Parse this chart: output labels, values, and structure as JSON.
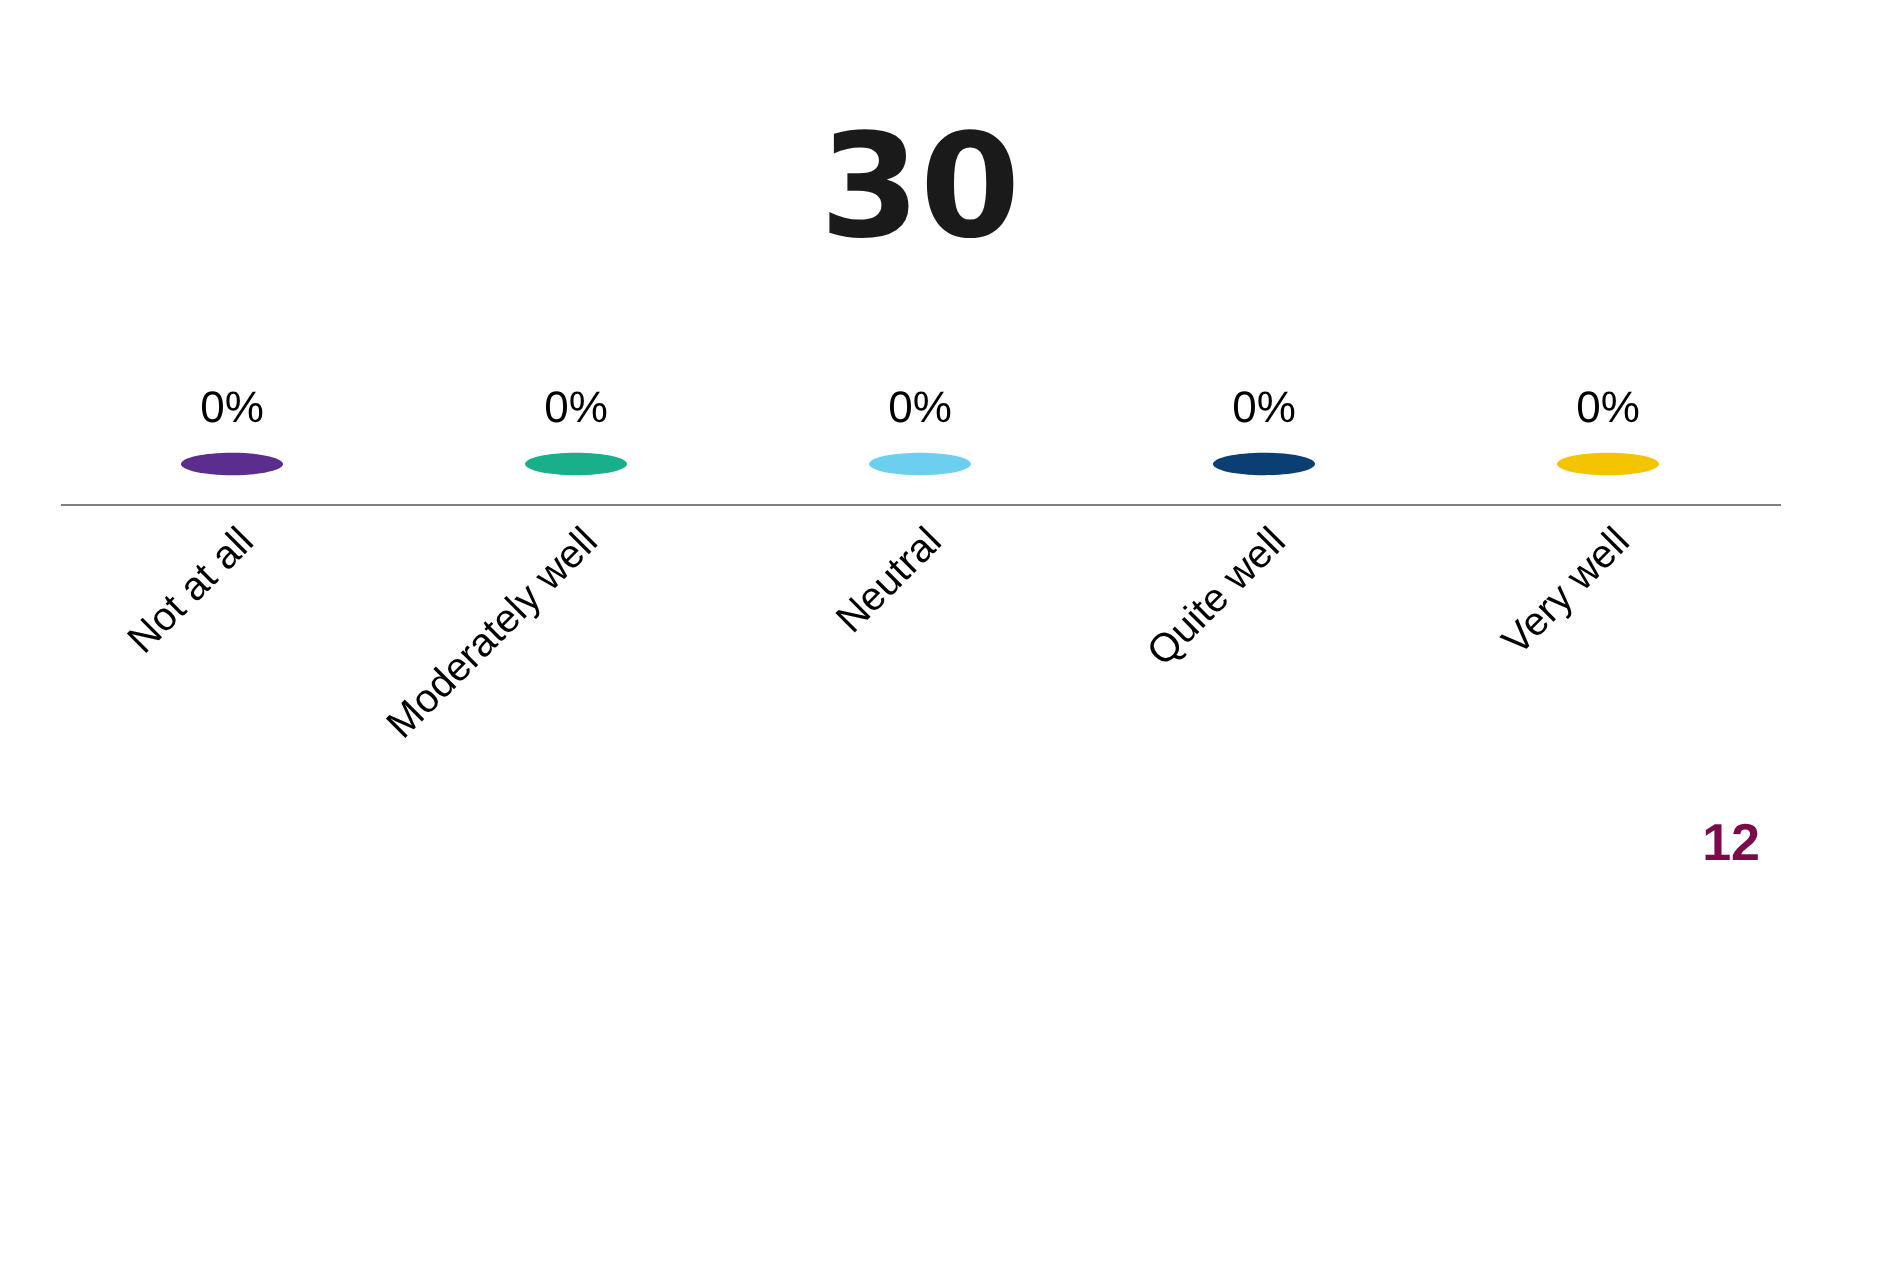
{
  "chart_data": {
    "type": "other",
    "title": "30",
    "categories": [
      "Not at all",
      "Moderately well",
      "Neutral",
      "Quite well",
      "Very well"
    ],
    "values": [
      0,
      0,
      0,
      0,
      0
    ],
    "colors": [
      "#5b2d8e",
      "#1aaf8b",
      "#6dcff0",
      "#0b3f73",
      "#f5c400"
    ],
    "value_labels": [
      "0%",
      "0%",
      "0%",
      "0%",
      "0%"
    ],
    "annotations": [
      "12"
    ]
  }
}
